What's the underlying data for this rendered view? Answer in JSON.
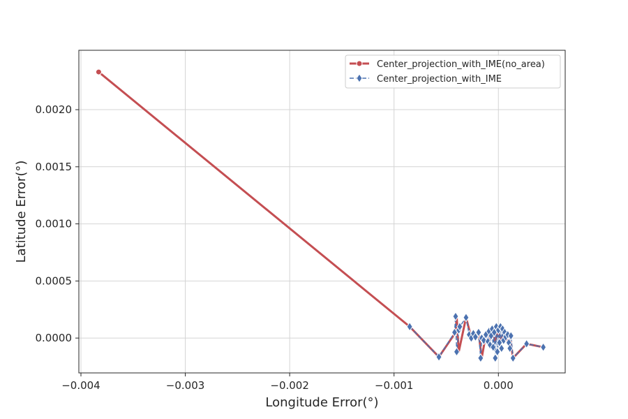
{
  "chart_data": {
    "type": "line",
    "title": "",
    "xlabel": "Longitude Error(°)",
    "ylabel": "Latitude Error(°)",
    "xlim": [
      -0.00402,
      0.00064
    ],
    "ylim": [
      -0.000305,
      0.00252
    ],
    "xticks": [
      -0.004,
      -0.003,
      -0.002,
      -0.001,
      0.0
    ],
    "xtick_labels": [
      "−0.004",
      "−0.003",
      "−0.002",
      "−0.001",
      "0.000"
    ],
    "yticks": [
      0.0,
      0.0005,
      0.001,
      0.0015,
      0.002
    ],
    "ytick_labels": [
      "0.0000",
      "0.0005",
      "0.0010",
      "0.0015",
      "0.0020"
    ],
    "grid": true,
    "legend_position": "upper-right",
    "series": [
      {
        "name": "Center_projection_with_IME(no_area)",
        "color": "#c44e52",
        "marker": "circle",
        "line_style": "solid",
        "x": [
          -0.00383,
          -0.00085,
          -0.00057,
          -0.00041,
          -0.0004,
          -0.00038,
          -0.00031,
          -0.00027,
          -0.00024,
          -0.00019,
          -0.00016,
          -0.00012,
          -9e-05,
          -6e-05,
          -3e-05,
          0.0,
          2e-05,
          5e-05,
          8e-05,
          0.00011,
          0.00014,
          0.00027,
          0.00043
        ],
        "y": [
          0.00233,
          0.0001,
          -0.000165,
          5e-05,
          0.00019,
          -0.00012,
          0.00018,
          4e-05,
          2e-05,
          5e-05,
          -0.000175,
          3e-05,
          -2e-05,
          8e-05,
          -3e-05,
          7e-05,
          -5e-05,
          6e-05,
          -2e-05,
          3e-05,
          -0.000175,
          -5e-05,
          -8e-05
        ]
      },
      {
        "name": "Center_projection_with_IME",
        "color": "#4c72b0",
        "marker": "diamond",
        "line_style": "dashed",
        "x": [
          -0.00085,
          -0.00057,
          -0.00042,
          -0.00041,
          -0.0004,
          -0.00038,
          -0.00037,
          -0.00031,
          -0.00028,
          -0.00026,
          -0.00024,
          -0.00022,
          -0.00019,
          -0.00017,
          -0.00016,
          -0.00014,
          -0.00012,
          -0.0001,
          -9e-05,
          -8e-05,
          -7e-05,
          -6e-05,
          -5e-05,
          -4e-05,
          -3e-05,
          -2e-05,
          -1e-05,
          0.0,
          1e-05,
          2e-05,
          3e-05,
          4e-05,
          5e-05,
          6e-05,
          7e-05,
          9e-05,
          0.0001,
          0.00011,
          0.00012,
          0.00014,
          0.00027,
          0.00043
        ],
        "y": [
          0.0001,
          -0.000165,
          5e-05,
          0.00019,
          -0.00012,
          7e-05,
          0.0001,
          0.00018,
          3e-05,
          0.0,
          4e-05,
          1e-05,
          5e-05,
          -0.000175,
          0.0,
          -2e-05,
          3e-05,
          -3e-05,
          6e-05,
          -6e-05,
          2e-05,
          8e-05,
          -8e-05,
          5e-05,
          -0.000175,
          0.0001,
          -0.00012,
          7e-05,
          -4e-05,
          0.0001,
          -9e-05,
          8e-05,
          -2e-05,
          5e-05,
          1e-05,
          3e-05,
          -4e-05,
          -9e-05,
          2e-05,
          -0.000175,
          -5e-05,
          -8e-05
        ]
      }
    ]
  }
}
